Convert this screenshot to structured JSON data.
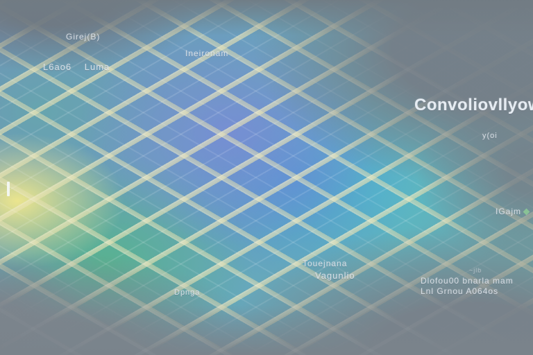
{
  "scene": {
    "type": "abstract-isometric-grid-illustration",
    "headline": "Convoliovllyowa"
  },
  "labels": {
    "girej": {
      "text": "Girej(B)"
    },
    "leaos": {
      "text": "L6ao6 Luma"
    },
    "ineironam": {
      "text": "Ineironam"
    },
    "conv": {
      "text": "Convoliovllyowa"
    },
    "yoi": {
      "text": "y(oi"
    },
    "iqajm": {
      "text": "IGajm"
    },
    "touejnana": {
      "text": "Touejnana"
    },
    "vagunlio": {
      "text": "Vagunlio"
    },
    "dpnga": {
      "text": "Dpnga"
    },
    "jlb": {
      "text": "~jlb"
    },
    "block_line1": {
      "text": "Dlofou00 bnarla mam"
    },
    "block_line2": {
      "text": "Lnl Grnou A064os"
    }
  },
  "colors": {
    "background_gray": "#79828b",
    "grid_line_cream": "#e9e3b2",
    "tile_periwinkle": "#7a8cd6",
    "tile_blue": "#508cd8",
    "tile_cyan": "#56bec8",
    "tile_green": "#56b48c",
    "highlight_yellow": "#f2e98c",
    "label_text": "#e4eaf0",
    "diamond_icon_green": "#8cc896"
  }
}
